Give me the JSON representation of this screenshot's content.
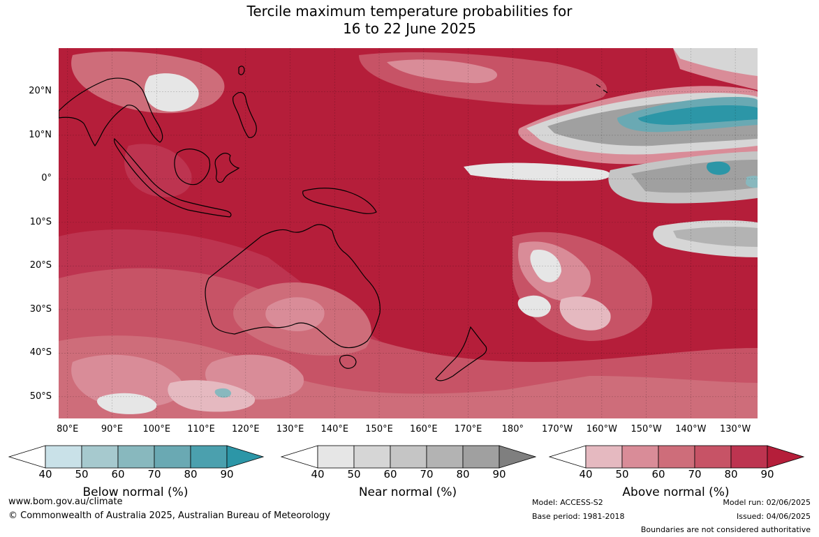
{
  "title": {
    "line1": "Tercile maximum temperature probabilities for",
    "line2": "16 to 22 June 2025"
  },
  "map": {
    "extent": {
      "lon_min": 78,
      "lon_max": 235,
      "lat_min": -55,
      "lat_max": 30
    },
    "lat_labels": [
      "20°N",
      "10°N",
      "0°",
      "10°S",
      "20°S",
      "30°S",
      "40°S",
      "50°S"
    ],
    "lon_labels": [
      "80°E",
      "90°E",
      "100°E",
      "110°E",
      "120°E",
      "130°E",
      "140°E",
      "150°E",
      "160°E",
      "170°E",
      "180°",
      "170°W",
      "160°W",
      "150°W",
      "140°W",
      "130°W"
    ],
    "colors": {
      "above": [
        "#e5b9c0",
        "#d98c98",
        "#ce6d7a",
        "#c75366",
        "#bd3450",
        "#b51e3a"
      ],
      "near": [
        "#e6e6e6",
        "#d6d6d6",
        "#c5c5c5",
        "#b3b3b3",
        "#a0a0a0"
      ],
      "below": [
        "#c9e1e8",
        "#a6c9ce",
        "#88b8be",
        "#6aa9b3",
        "#4ba0ae",
        "#2c96a7"
      ]
    }
  },
  "colorbars": [
    {
      "id": "below",
      "title": "Below normal (%)",
      "ticks": [
        "40",
        "50",
        "60",
        "70",
        "80",
        "90"
      ],
      "colors": [
        "#c9e1e8",
        "#a6c9ce",
        "#88b8be",
        "#6aa9b3",
        "#4ba0ae"
      ],
      "end_color": "#2c96a7"
    },
    {
      "id": "near",
      "title": "Near normal (%)",
      "ticks": [
        "40",
        "50",
        "60",
        "70",
        "80",
        "90"
      ],
      "colors": [
        "#e6e6e6",
        "#d6d6d6",
        "#c5c5c5",
        "#b3b3b3",
        "#a0a0a0"
      ],
      "end_color": "#7f7f7f"
    },
    {
      "id": "above",
      "title": "Above normal (%)",
      "ticks": [
        "40",
        "50",
        "60",
        "70",
        "80",
        "90"
      ],
      "colors": [
        "#e5b9c0",
        "#d98c98",
        "#ce6d7a",
        "#c75366",
        "#bd3450"
      ],
      "end_color": "#b51e3a"
    }
  ],
  "footer": {
    "url": "www.bom.gov.au/climate",
    "copyright": "© Commonwealth of Australia 2025, Australian Bureau of Meteorology",
    "model": "Model: ACCESS-S2",
    "base_period": "Base period: 1981-2018",
    "model_run": "Model run: 02/06/2025",
    "issued": "Issued: 04/06/2025",
    "disclaimer": "Boundaries are not considered authoritative"
  }
}
